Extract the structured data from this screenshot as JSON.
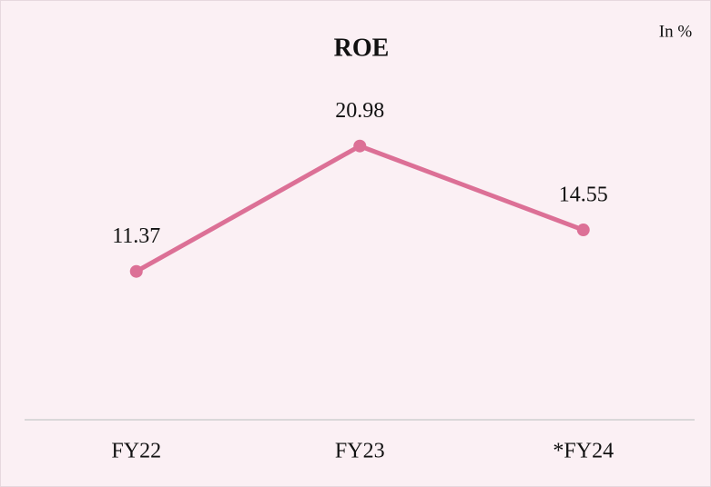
{
  "chart_data": {
    "type": "line",
    "title": "ROE",
    "annotation": "In %",
    "categories": [
      "FY22",
      "FY23",
      "*FY24"
    ],
    "series": [
      {
        "name": "ROE",
        "color": "#dc7096",
        "values": [
          11.37,
          20.98,
          14.55
        ]
      }
    ],
    "ylim": [
      0,
      25
    ]
  }
}
